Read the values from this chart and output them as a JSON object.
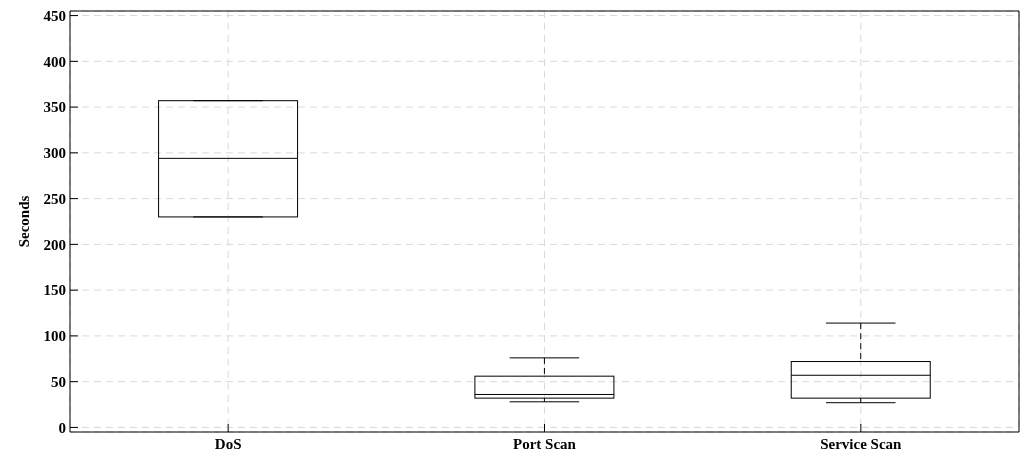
{
  "chart_data": {
    "type": "box",
    "ylabel": "Seconds",
    "categories": [
      "DoS",
      "Port Scan",
      "Service Scan"
    ],
    "boxes": [
      {
        "low": 230,
        "q1": 230,
        "median": 294,
        "q3": 357,
        "high": 357
      },
      {
        "low": 28,
        "q1": 32,
        "median": 36,
        "q3": 56,
        "high": 76
      },
      {
        "low": 27,
        "q1": 32,
        "median": 57,
        "q3": 72,
        "high": 114
      }
    ],
    "color": "#000000",
    "ylim": [
      -5,
      455
    ],
    "yticks": [
      0,
      50,
      100,
      150,
      200,
      250,
      300,
      350,
      400,
      450
    ],
    "grid": true
  }
}
